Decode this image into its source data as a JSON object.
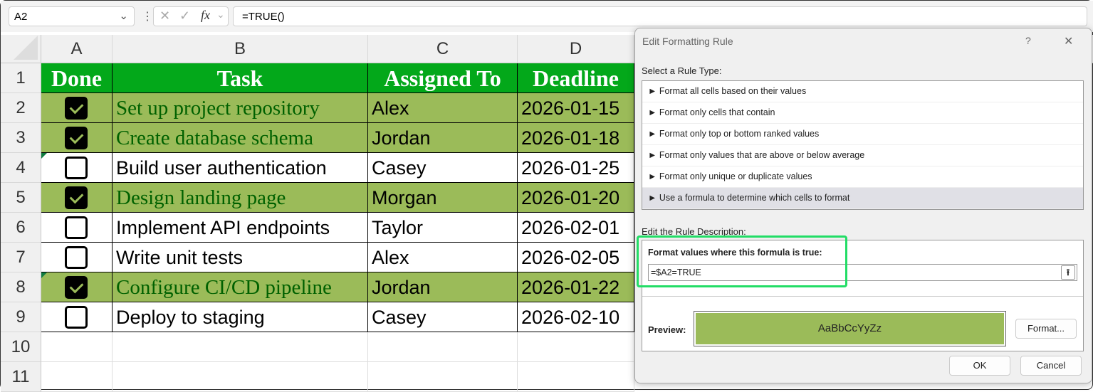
{
  "formula_bar": {
    "name_box": "A2",
    "formula": "=TRUE()",
    "fx": "fx"
  },
  "columns": [
    "A",
    "B",
    "C",
    "D"
  ],
  "row_numbers": [
    "1",
    "2",
    "3",
    "4",
    "5",
    "6",
    "7",
    "8",
    "9",
    "10",
    "11"
  ],
  "headers": [
    "Done",
    "Task",
    "Assigned To",
    "Deadline"
  ],
  "rows": [
    {
      "done": true,
      "task": "Set up project repository",
      "assigned": "Alex",
      "deadline": "2026-01-15"
    },
    {
      "done": true,
      "task": "Create database schema",
      "assigned": "Jordan",
      "deadline": "2026-01-18"
    },
    {
      "done": false,
      "task": "Build user authentication",
      "assigned": "Casey",
      "deadline": "2026-01-25"
    },
    {
      "done": true,
      "task": "Design landing page",
      "assigned": "Morgan",
      "deadline": "2026-01-20"
    },
    {
      "done": false,
      "task": "Implement API endpoints",
      "assigned": "Taylor",
      "deadline": "2026-02-01"
    },
    {
      "done": false,
      "task": "Write unit tests",
      "assigned": "Alex",
      "deadline": "2026-02-05"
    },
    {
      "done": true,
      "task": "Configure CI/CD pipeline",
      "assigned": "Jordan",
      "deadline": "2026-01-22"
    },
    {
      "done": false,
      "task": "Deploy to staging",
      "assigned": "Casey",
      "deadline": "2026-02-10"
    }
  ],
  "dialog": {
    "title": "Edit Formatting Rule",
    "help": "?",
    "close": "✕",
    "rule_type_label": "Select a Rule Type:",
    "rule_types": [
      "► Format all cells based on their values",
      "► Format only cells that contain",
      "► Format only top or bottom ranked values",
      "► Format only values that are above or below average",
      "► Format only unique or duplicate values",
      "► Use a formula to determine which cells to format"
    ],
    "description_label": "Edit the Rule Description:",
    "formula_label": "Format values where this formula is true:",
    "formula_value": "=$A2=TRUE",
    "preview_label": "Preview:",
    "preview_text": "AaBbCcYyZz",
    "format_button": "Format...",
    "ok": "OK",
    "cancel": "Cancel"
  },
  "colors": {
    "header_fill": "#03a81a",
    "done_fill": "#9bbb59",
    "done_text": "#006100",
    "highlight": "#22dd66"
  }
}
